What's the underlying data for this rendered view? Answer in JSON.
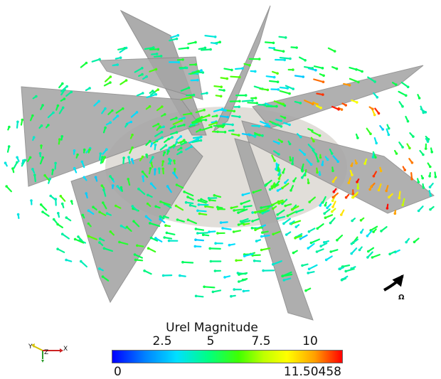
{
  "colorbar": {
    "title": "Urel Magnitude",
    "ticks": [
      "2.5",
      "5",
      "7.5",
      "10"
    ],
    "min_label": "0",
    "max_label": "11.50458",
    "min": 0,
    "max": 11.50458
  },
  "rotation_label": "Ω",
  "orientation_axes": {
    "y": "Y",
    "z": "Z",
    "x": "X"
  },
  "colors": {
    "blade": "#a9a9a9",
    "disk": "#dcd8d2",
    "low": "#0000ff",
    "mid": "#00ff00",
    "high": "#ff0000"
  }
}
